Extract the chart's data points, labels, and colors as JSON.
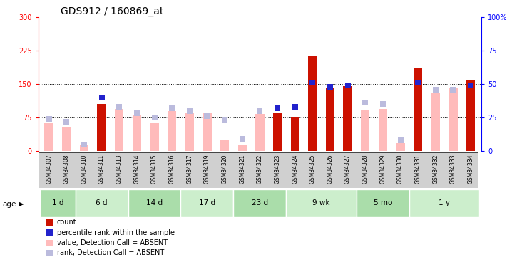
{
  "title": "GDS912 / 160869_at",
  "samples": [
    "GSM34307",
    "GSM34308",
    "GSM34310",
    "GSM34311",
    "GSM34313",
    "GSM34314",
    "GSM34315",
    "GSM34316",
    "GSM34317",
    "GSM34319",
    "GSM34320",
    "GSM34321",
    "GSM34322",
    "GSM34323",
    "GSM34324",
    "GSM34325",
    "GSM34326",
    "GSM34327",
    "GSM34328",
    "GSM34329",
    "GSM34330",
    "GSM34331",
    "GSM34332",
    "GSM34333",
    "GSM34334"
  ],
  "count_values": [
    0,
    0,
    0,
    105,
    0,
    0,
    0,
    0,
    0,
    0,
    0,
    0,
    0,
    85,
    75,
    215,
    140,
    145,
    0,
    0,
    0,
    185,
    0,
    0,
    160
  ],
  "absent_value": [
    63,
    55,
    15,
    0,
    95,
    80,
    63,
    90,
    85,
    85,
    25,
    12,
    83,
    0,
    0,
    0,
    0,
    0,
    92,
    95,
    17,
    0,
    130,
    140,
    150
  ],
  "rank_present": [
    24,
    22,
    5,
    40,
    33,
    28,
    25,
    32,
    30,
    26,
    23,
    9,
    30,
    32,
    33,
    51,
    48,
    49,
    36,
    35,
    8,
    51,
    46,
    46,
    49
  ],
  "rank_absent": [
    24,
    22,
    5,
    0,
    33,
    28,
    25,
    32,
    30,
    26,
    23,
    9,
    30,
    0,
    0,
    0,
    0,
    0,
    36,
    35,
    8,
    0,
    46,
    46,
    0
  ],
  "count_is_present": [
    false,
    false,
    false,
    true,
    false,
    false,
    false,
    false,
    false,
    false,
    false,
    false,
    false,
    true,
    true,
    true,
    true,
    true,
    false,
    false,
    false,
    true,
    false,
    false,
    true
  ],
  "rank_is_present": [
    false,
    false,
    false,
    true,
    false,
    false,
    false,
    false,
    false,
    false,
    false,
    false,
    false,
    true,
    true,
    true,
    true,
    true,
    false,
    false,
    false,
    true,
    false,
    false,
    true
  ],
  "age_groups": [
    {
      "label": "1 d",
      "start": 0,
      "end": 2
    },
    {
      "label": "6 d",
      "start": 2,
      "end": 5
    },
    {
      "label": "14 d",
      "start": 5,
      "end": 8
    },
    {
      "label": "17 d",
      "start": 8,
      "end": 11
    },
    {
      "label": "23 d",
      "start": 11,
      "end": 14
    },
    {
      "label": "9 wk",
      "start": 14,
      "end": 18
    },
    {
      "label": "5 mo",
      "start": 18,
      "end": 21
    },
    {
      "label": "1 y",
      "start": 21,
      "end": 25
    }
  ],
  "ylim_left": [
    0,
    300
  ],
  "ylim_right": [
    0,
    100
  ],
  "yticks_left": [
    0,
    75,
    150,
    225,
    300
  ],
  "yticks_right": [
    0,
    25,
    50,
    75,
    100
  ],
  "color_count": "#cc1100",
  "color_rank": "#2222cc",
  "color_absent_val": "#ffbbbb",
  "color_absent_rank": "#bbbbdd",
  "age_color_a": "#aaddaa",
  "age_color_b": "#cceecc",
  "bar_width": 0.5,
  "marker_size": 36,
  "title_fontsize": 10,
  "tick_fontsize": 5.5,
  "legend_fontsize": 7
}
